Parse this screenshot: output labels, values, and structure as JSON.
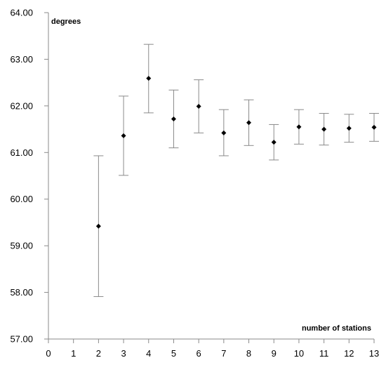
{
  "chart_data": {
    "type": "scatter",
    "ylabel": "degrees",
    "xlabel": "number of stations",
    "xlim": [
      0,
      13
    ],
    "ylim": [
      57.0,
      64.0
    ],
    "xticks": [
      0,
      1,
      2,
      3,
      4,
      5,
      6,
      7,
      8,
      9,
      10,
      11,
      12,
      13
    ],
    "yticks": [
      57.0,
      58.0,
      59.0,
      60.0,
      61.0,
      62.0,
      63.0,
      64.0
    ],
    "ytick_labels": [
      "57.00",
      "58.00",
      "59.00",
      "60.00",
      "61.00",
      "62.00",
      "63.00",
      "64.00"
    ],
    "grid": false,
    "marker": "diamond",
    "points": [
      {
        "x": 2,
        "y": 59.42,
        "low": 57.91,
        "high": 60.93
      },
      {
        "x": 3,
        "y": 61.36,
        "low": 60.51,
        "high": 62.21
      },
      {
        "x": 4,
        "y": 62.59,
        "low": 61.85,
        "high": 63.32
      },
      {
        "x": 5,
        "y": 61.72,
        "low": 61.1,
        "high": 62.34
      },
      {
        "x": 6,
        "y": 61.99,
        "low": 61.42,
        "high": 62.56
      },
      {
        "x": 7,
        "y": 61.42,
        "low": 60.93,
        "high": 61.92
      },
      {
        "x": 8,
        "y": 61.64,
        "low": 61.15,
        "high": 62.13
      },
      {
        "x": 9,
        "y": 61.22,
        "low": 60.84,
        "high": 61.6
      },
      {
        "x": 10,
        "y": 61.55,
        "low": 61.18,
        "high": 61.92
      },
      {
        "x": 11,
        "y": 61.5,
        "low": 61.16,
        "high": 61.84
      },
      {
        "x": 12,
        "y": 61.52,
        "low": 61.22,
        "high": 61.82
      },
      {
        "x": 13,
        "y": 61.54,
        "low": 61.24,
        "high": 61.84
      }
    ]
  }
}
